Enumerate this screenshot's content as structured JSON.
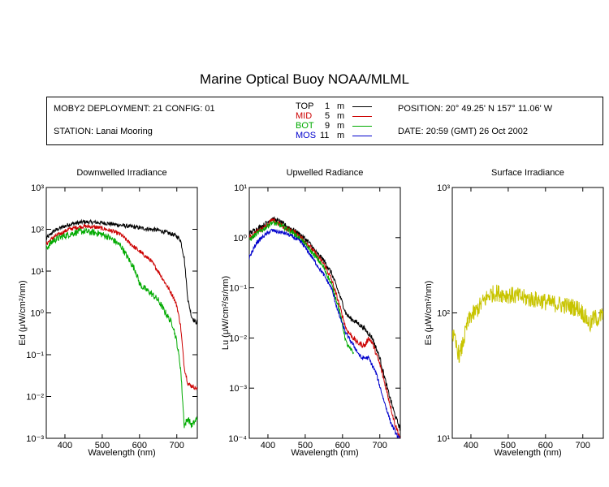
{
  "title": "Marine Optical Buoy NOAA/MLML",
  "info": {
    "deployment": "MOBY2 DEPLOYMENT: 21 CONFIG: 01",
    "station": "STATION: Lanai Mooring",
    "position": "POSITION: 20° 49.25' N   157° 11.06' W",
    "date": "DATE: 20:59 (GMT) 26 Oct 2002",
    "legend": [
      {
        "name": "TOP",
        "depth": "1",
        "unit": "m",
        "color": "#000000"
      },
      {
        "name": "MID",
        "depth": "5",
        "unit": "m",
        "color": "#cc0000"
      },
      {
        "name": "BOT",
        "depth": "9",
        "unit": "m",
        "color": "#00aa00"
      },
      {
        "name": "MOS",
        "depth": "11",
        "unit": "m",
        "color": "#0000cc"
      }
    ]
  },
  "chart_data": [
    {
      "type": "line",
      "title": "Downwelled Irradiance",
      "xlabel": "Wavelength (nm)",
      "ylabel": "Ed  (μW/cm²/nm)",
      "xlim": [
        350,
        755
      ],
      "ylim": [
        0.001,
        1000
      ],
      "yscale": "log",
      "xticks": [
        400,
        500,
        600,
        700
      ],
      "yticks": [
        "10³",
        "10²",
        "10¹",
        "10⁰",
        "10⁻¹",
        "10⁻²",
        "10⁻³"
      ],
      "series": [
        {
          "name": "TOP",
          "color": "#000000",
          "noise": 0.05,
          "x": [
            350,
            370,
            390,
            410,
            430,
            450,
            470,
            490,
            510,
            530,
            550,
            570,
            590,
            610,
            630,
            650,
            670,
            690,
            700,
            710,
            720,
            730,
            740,
            750,
            755
          ],
          "y": [
            60,
            90,
            110,
            130,
            140,
            150,
            148,
            145,
            140,
            132,
            125,
            118,
            112,
            105,
            100,
            95,
            85,
            75,
            68,
            55,
            20,
            2,
            0.8,
            0.6,
            0.6
          ]
        },
        {
          "name": "MID",
          "color": "#cc0000",
          "noise": 0.05,
          "x": [
            350,
            370,
            390,
            410,
            430,
            450,
            470,
            490,
            510,
            530,
            550,
            570,
            590,
            610,
            630,
            650,
            670,
            690,
            700,
            710,
            720,
            730,
            740,
            750,
            755
          ],
          "y": [
            45,
            65,
            80,
            100,
            110,
            118,
            115,
            110,
            100,
            88,
            75,
            50,
            35,
            25,
            18,
            10,
            5,
            2.5,
            1.5,
            0.5,
            0.05,
            0.02,
            0.018,
            0.016,
            0.015
          ]
        },
        {
          "name": "BOT",
          "color": "#00aa00",
          "noise": 0.08,
          "x": [
            350,
            370,
            390,
            410,
            430,
            450,
            470,
            490,
            510,
            530,
            550,
            570,
            590,
            600,
            610,
            630,
            650,
            670,
            690,
            700,
            710,
            720,
            730,
            740,
            755
          ],
          "y": [
            35,
            55,
            65,
            75,
            85,
            90,
            85,
            80,
            70,
            55,
            40,
            20,
            10,
            5,
            4,
            3,
            2,
            1,
            0.5,
            0.2,
            0.05,
            0.002,
            0.003,
            0.002,
            0.003
          ]
        }
      ]
    },
    {
      "type": "line",
      "title": "Upwelled Radiance",
      "xlabel": "Wavelength (nm)",
      "ylabel": "Lu  (μW/cm²/sr/nm)",
      "xlim": [
        350,
        755
      ],
      "ylim": [
        0.0001,
        10
      ],
      "yscale": "log",
      "xticks": [
        400,
        500,
        600,
        700
      ],
      "yticks": [
        "10¹",
        "10⁰",
        "10⁻¹",
        "10⁻²",
        "10⁻³",
        "10⁻⁴"
      ],
      "series": [
        {
          "name": "TOP",
          "color": "#000000",
          "noise": 0.05,
          "x": [
            350,
            370,
            390,
            410,
            430,
            450,
            470,
            490,
            510,
            530,
            550,
            570,
            590,
            610,
            620,
            640,
            660,
            680,
            700,
            720,
            740,
            755
          ],
          "y": [
            1.2,
            1.5,
            1.8,
            2.4,
            2.1,
            1.7,
            1.4,
            1.1,
            0.8,
            0.5,
            0.35,
            0.2,
            0.08,
            0.03,
            0.025,
            0.02,
            0.015,
            0.01,
            0.004,
            0.001,
            0.0003,
            0.00015
          ]
        },
        {
          "name": "MID",
          "color": "#cc0000",
          "noise": 0.05,
          "x": [
            350,
            370,
            390,
            410,
            430,
            450,
            470,
            490,
            510,
            530,
            550,
            570,
            590,
            610,
            620,
            640,
            660,
            670,
            680,
            700,
            720,
            740,
            755
          ],
          "y": [
            1.0,
            1.3,
            1.6,
            2.2,
            1.9,
            1.5,
            1.3,
            1.0,
            0.7,
            0.45,
            0.3,
            0.15,
            0.05,
            0.015,
            0.012,
            0.008,
            0.007,
            0.01,
            0.008,
            0.003,
            0.0008,
            0.0002,
            0.0001
          ]
        },
        {
          "name": "BOT",
          "color": "#00aa00",
          "noise": 0.05,
          "x": [
            350,
            370,
            390,
            410,
            430,
            450,
            470,
            490,
            510,
            530,
            550,
            570,
            590,
            610,
            620,
            630
          ],
          "y": [
            0.9,
            1.2,
            1.5,
            2.0,
            1.8,
            1.5,
            1.2,
            0.9,
            0.6,
            0.4,
            0.25,
            0.12,
            0.04,
            0.008,
            0.006,
            0.005
          ]
        },
        {
          "name": "MOS",
          "color": "#0000cc",
          "noise": 0.04,
          "x": [
            350,
            370,
            390,
            410,
            430,
            450,
            470,
            490,
            510,
            530,
            550,
            570,
            590,
            610,
            630,
            650,
            670,
            690,
            710,
            730,
            750,
            755
          ],
          "y": [
            0.4,
            0.8,
            1.1,
            1.4,
            1.3,
            1.2,
            1.0,
            0.8,
            0.5,
            0.3,
            0.18,
            0.1,
            0.03,
            0.012,
            0.007,
            0.004,
            0.004,
            0.002,
            0.0006,
            0.0002,
            0.0001,
            0.0001
          ]
        }
      ]
    },
    {
      "type": "line",
      "title": "Surface Irradiance",
      "xlabel": "Wavelength (nm)",
      "ylabel": "Es  (μW/cm²/nm)",
      "xlim": [
        350,
        755
      ],
      "ylim": [
        10,
        1000
      ],
      "yscale": "log",
      "xticks": [
        400,
        500,
        600,
        700
      ],
      "yticks": [
        "10³",
        "10²",
        "10¹"
      ],
      "series": [
        {
          "name": "Es",
          "color": "#c8c400",
          "noise": 0.07,
          "x": [
            350,
            360,
            370,
            380,
            390,
            400,
            410,
            430,
            450,
            470,
            490,
            510,
            530,
            550,
            570,
            590,
            610,
            630,
            650,
            670,
            690,
            700,
            710,
            720,
            730,
            740,
            750,
            755
          ],
          "y": [
            70,
            55,
            45,
            60,
            80,
            95,
            100,
            120,
            140,
            145,
            140,
            138,
            135,
            130,
            128,
            125,
            120,
            118,
            115,
            112,
            108,
            100,
            90,
            80,
            92,
            90,
            95,
            96
          ]
        }
      ]
    }
  ]
}
